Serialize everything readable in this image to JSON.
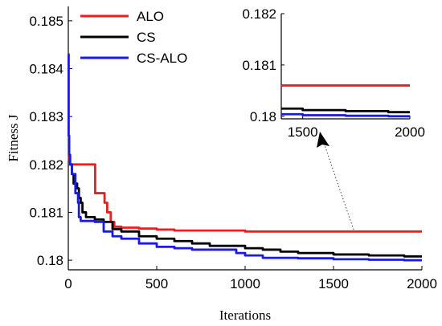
{
  "chart_data": {
    "type": "line",
    "xlabel": "Iterations",
    "ylabel": "Fitness J",
    "xlim": [
      0,
      2000
    ],
    "ylim": [
      0.1798,
      0.1853
    ],
    "xticks": [
      "0",
      "500",
      "1000",
      "1500",
      "2000"
    ],
    "yticks": [
      "0.18",
      "0.181",
      "0.182",
      "0.183",
      "0.184",
      "0.185"
    ],
    "legend_position": "top-left",
    "series": [
      {
        "name": "ALO",
        "color": "#ee1c1c",
        "points": [
          [
            0,
            0.1825
          ],
          [
            2,
            0.1825
          ],
          [
            4,
            0.1821
          ],
          [
            6,
            0.182
          ],
          [
            30,
            0.182
          ],
          [
            150,
            0.182
          ],
          [
            152,
            0.1814
          ],
          [
            200,
            0.1814
          ],
          [
            205,
            0.1812
          ],
          [
            220,
            0.181
          ],
          [
            240,
            0.1808
          ],
          [
            260,
            0.1807
          ],
          [
            280,
            0.1807
          ],
          [
            300,
            0.18068
          ],
          [
            400,
            0.18066
          ],
          [
            500,
            0.18064
          ],
          [
            600,
            0.18062
          ],
          [
            700,
            0.18062
          ],
          [
            800,
            0.18062
          ],
          [
            1000,
            0.1806
          ],
          [
            1200,
            0.1806
          ],
          [
            1500,
            0.1806
          ],
          [
            1800,
            0.1806
          ],
          [
            2000,
            0.1806
          ]
        ]
      },
      {
        "name": "CS",
        "color": "#000000",
        "points": [
          [
            0,
            0.1825
          ],
          [
            5,
            0.1822
          ],
          [
            10,
            0.182
          ],
          [
            20,
            0.1818
          ],
          [
            30,
            0.1816
          ],
          [
            50,
            0.1815
          ],
          [
            60,
            0.1813
          ],
          [
            70,
            0.1812
          ],
          [
            80,
            0.181
          ],
          [
            100,
            0.1809
          ],
          [
            150,
            0.18085
          ],
          [
            200,
            0.1808
          ],
          [
            250,
            0.18065
          ],
          [
            300,
            0.1806
          ],
          [
            400,
            0.1805
          ],
          [
            500,
            0.18045
          ],
          [
            600,
            0.1804
          ],
          [
            700,
            0.18035
          ],
          [
            800,
            0.1803
          ],
          [
            900,
            0.1803
          ],
          [
            1000,
            0.18025
          ],
          [
            1100,
            0.18022
          ],
          [
            1200,
            0.18018
          ],
          [
            1300,
            0.18015
          ],
          [
            1400,
            0.18015
          ],
          [
            1500,
            0.18012
          ],
          [
            1600,
            0.18012
          ],
          [
            1700,
            0.1801
          ],
          [
            1800,
            0.1801
          ],
          [
            1900,
            0.18008
          ],
          [
            2000,
            0.18008
          ]
        ]
      },
      {
        "name": "CS-ALO",
        "color": "#1a1ae6",
        "points": [
          [
            0,
            0.1843
          ],
          [
            2,
            0.1826
          ],
          [
            5,
            0.1822
          ],
          [
            10,
            0.182
          ],
          [
            20,
            0.1818
          ],
          [
            40,
            0.1814
          ],
          [
            55,
            0.1812
          ],
          [
            60,
            0.1809
          ],
          [
            70,
            0.18082
          ],
          [
            150,
            0.1808
          ],
          [
            200,
            0.1806
          ],
          [
            250,
            0.1805
          ],
          [
            300,
            0.18045
          ],
          [
            400,
            0.18035
          ],
          [
            500,
            0.18028
          ],
          [
            600,
            0.18025
          ],
          [
            700,
            0.18022
          ],
          [
            800,
            0.18022
          ],
          [
            900,
            0.18022
          ],
          [
            950,
            0.18015
          ],
          [
            1000,
            0.1801
          ],
          [
            1100,
            0.18005
          ],
          [
            1200,
            0.18005
          ],
          [
            1300,
            0.18004
          ],
          [
            1400,
            0.18004
          ],
          [
            1500,
            0.18002
          ],
          [
            1600,
            0.18002
          ],
          [
            1700,
            0.18001
          ],
          [
            1800,
            0.18001
          ],
          [
            1900,
            0.18
          ],
          [
            2000,
            0.18
          ]
        ]
      }
    ],
    "inset": {
      "xlim": [
        1400,
        2000
      ],
      "ylim": [
        0.17995,
        0.182
      ],
      "xticks": [
        "1500",
        "2000"
      ],
      "yticks": [
        "0.18",
        "0.181",
        "0.182"
      ]
    }
  }
}
